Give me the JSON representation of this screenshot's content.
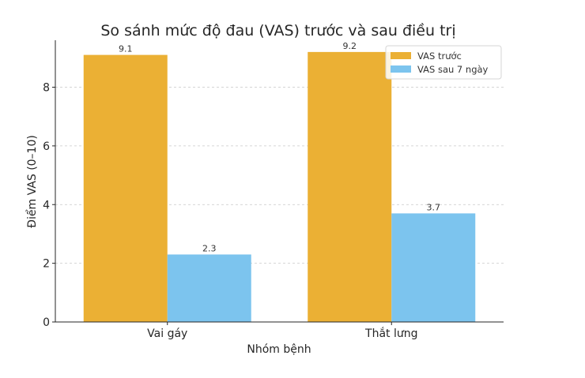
{
  "chart_data": {
    "type": "bar",
    "title": "So sánh mức độ đau (VAS) trước và sau điều trị",
    "xlabel": "Nhóm bệnh",
    "ylabel": "Điểm VAS (0–10)",
    "categories": [
      "Vai gáy",
      "Thắt lưng"
    ],
    "series": [
      {
        "name": "VAS trước",
        "values": [
          9.1,
          9.2
        ],
        "labels": [
          "9.1",
          "9.2"
        ],
        "color": "#EBB034"
      },
      {
        "name": "VAS sau 7 ngày",
        "values": [
          2.3,
          3.7
        ],
        "labels": [
          "2.3",
          "3.7"
        ],
        "color": "#7CC4EE"
      }
    ],
    "ylim": [
      0,
      9.6
    ],
    "yticks": [
      0,
      2,
      4,
      6,
      8
    ],
    "grid": "y-dashed",
    "legend_position": "top-right"
  }
}
